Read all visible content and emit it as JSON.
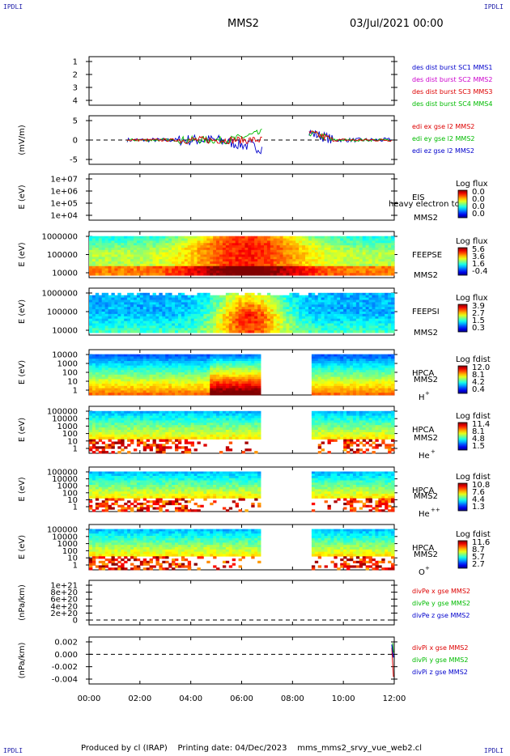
{
  "header": {
    "corner_label": "IPDLI",
    "spacecraft": "MMS2",
    "date": "03/Jul/2021 00:00"
  },
  "footer": {
    "produced": "Produced by cl (IRAP)",
    "printing": "Printing date: 04/Dec/2023",
    "script": "mms_mms2_srvy_vue_web2.cl"
  },
  "chart_data": {
    "type": "heatmap",
    "x_axis": {
      "ticks": [
        "00:00",
        "02:00",
        "04:00",
        "06:00",
        "08:00",
        "10:00",
        "12:00"
      ],
      "range_hours": [
        0,
        12
      ]
    },
    "data_gap_hours": [
      6.75,
      8.7
    ],
    "panels": [
      {
        "id": "des",
        "ylabel": "",
        "yticks": [
          "1",
          "2",
          "3",
          "4"
        ],
        "legend": [
          {
            "text": "des dist burst SC1 MMS1",
            "color": "#0000cc"
          },
          {
            "text": "des dist burst SC2 MMS2",
            "color": "#cc00cc"
          },
          {
            "text": "des dist burst SC3 MMS3",
            "color": "#dd0000"
          },
          {
            "text": "des dist burst SC4 MMS4",
            "color": "#00bb00"
          }
        ]
      },
      {
        "id": "edi",
        "ylabel": "(mV/m)",
        "yticks": [
          "5",
          "0",
          "-5"
        ],
        "yrange": [
          -7,
          7
        ],
        "legend": [
          {
            "text": "edi ex gse l2 MMS2",
            "color": "#dd0000"
          },
          {
            "text": "edi ey gse l2 MMS2",
            "color": "#00bb00"
          },
          {
            "text": "edi ez gse l2 MMS2",
            "color": "#0000cc"
          }
        ]
      },
      {
        "id": "eis",
        "ylabel": "E (eV)",
        "yticks": [
          "1e+07",
          "1e+06",
          "1e+05",
          "1e+04"
        ],
        "labels": [
          "EIS",
          "MMS2"
        ],
        "overlay": "heavy electron to",
        "cbar_title": "Log flux",
        "cbar_ticks": [
          "0.0",
          "0.0",
          "0.0",
          "0.0"
        ]
      },
      {
        "id": "feepse",
        "ylabel": "E (eV)",
        "yticks": [
          "1000000",
          "100000",
          "10000"
        ],
        "labels": [
          "FEEPSE",
          "MMS2"
        ],
        "cbar_title": "Log flux",
        "cbar_ticks": [
          "5.6",
          "3.6",
          "1.6",
          "-0.4"
        ]
      },
      {
        "id": "feepsi",
        "ylabel": "E (eV)",
        "yticks": [
          "1000000",
          "100000",
          "10000"
        ],
        "labels": [
          "FEEPSI",
          "MMS2"
        ],
        "cbar_title": "Log flux",
        "cbar_ticks": [
          "3.9",
          "2.7",
          "1.5",
          "0.3"
        ]
      },
      {
        "id": "hpca_h",
        "ylabel": "E (eV)",
        "yticks": [
          "10000",
          "1000",
          "100",
          "10",
          "1"
        ],
        "labels": [
          "HPCA",
          "MMS2"
        ],
        "species": "H",
        "charge": "+",
        "cbar_title": "Log fdist",
        "cbar_ticks": [
          "12.0",
          "8.1",
          "4.2",
          "0.4"
        ]
      },
      {
        "id": "hpca_he",
        "ylabel": "E (eV)",
        "yticks": [
          "100000",
          "10000",
          "1000",
          "100",
          "10",
          "1"
        ],
        "labels": [
          "HPCA",
          "MMS2"
        ],
        "species": "He",
        "charge": "+",
        "cbar_title": "Log fdist",
        "cbar_ticks": [
          "11.4",
          "8.1",
          "4.8",
          "1.5"
        ]
      },
      {
        "id": "hpca_hepp",
        "ylabel": "E (eV)",
        "yticks": [
          "100000",
          "10000",
          "1000",
          "100",
          "10",
          "1"
        ],
        "labels": [
          "HPCA",
          "MMS2"
        ],
        "species": "He",
        "charge": "++",
        "cbar_title": "Log fdist",
        "cbar_ticks": [
          "10.8",
          "7.6",
          "4.4",
          "1.3"
        ]
      },
      {
        "id": "hpca_o",
        "ylabel": "E (eV)",
        "yticks": [
          "100000",
          "10000",
          "1000",
          "100",
          "10",
          "1"
        ],
        "labels": [
          "HPCA",
          "MMS2"
        ],
        "species": "O",
        "charge": "+",
        "cbar_title": "Log fdist",
        "cbar_ticks": [
          "11.6",
          "8.7",
          "5.7",
          "2.7"
        ]
      },
      {
        "id": "divpe",
        "ylabel": "(nPa/km)",
        "yticks": [
          "1e+21",
          "8e+20",
          "6e+20",
          "4e+20",
          "2e+20",
          "0"
        ],
        "legend": [
          {
            "text": "divPe x gse MMS2",
            "color": "#dd0000"
          },
          {
            "text": "divPe y gse MMS2",
            "color": "#00bb00"
          },
          {
            "text": "divPe z gse MMS2",
            "color": "#0000cc"
          }
        ]
      },
      {
        "id": "divpi",
        "ylabel": "(nPa/km)",
        "yticks": [
          "0.002",
          "0.000",
          "-0.002",
          "-0.004"
        ],
        "legend": [
          {
            "text": "divPi x gse MMS2",
            "color": "#dd0000"
          },
          {
            "text": "divPi y gse MMS2",
            "color": "#00bb00"
          },
          {
            "text": "divPi z gse MMS2",
            "color": "#0000cc"
          }
        ]
      }
    ]
  }
}
